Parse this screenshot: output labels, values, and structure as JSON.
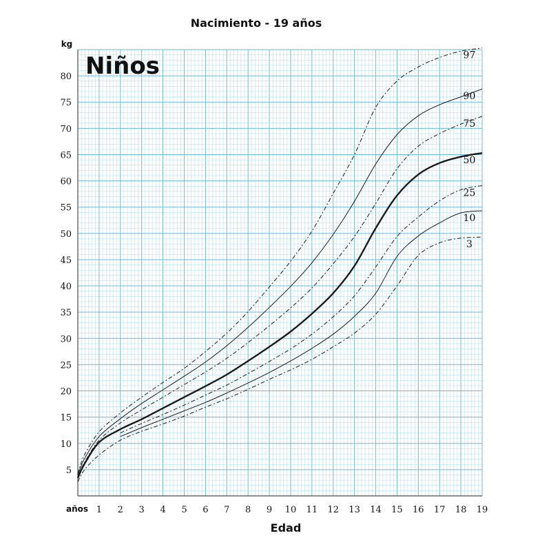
{
  "chart_data": {
    "type": "line",
    "title": "Nacimiento - 19 años",
    "subtitle": "Niños",
    "xlabel": "Edad",
    "x_unit": "años",
    "ylabel": "kg",
    "xlim": [
      0,
      19
    ],
    "ylim": [
      0,
      85
    ],
    "x_ticks": [
      "1",
      "2",
      "3",
      "4",
      "5",
      "6",
      "7",
      "8",
      "9",
      "10",
      "11",
      "12",
      "13",
      "14",
      "15",
      "16",
      "17",
      "18",
      "19"
    ],
    "y_ticks": [
      "5",
      "10",
      "15",
      "20",
      "25",
      "30",
      "35",
      "40",
      "45",
      "50",
      "55",
      "60",
      "65",
      "70",
      "75",
      "80"
    ],
    "grid": true,
    "series": [
      {
        "name": "97",
        "style": "dashed",
        "x": [
          0,
          0.3,
          1,
          2,
          3,
          4,
          5,
          6,
          7,
          8,
          9,
          10,
          11,
          12,
          13,
          14,
          15,
          16,
          17,
          18,
          19
        ],
        "y": [
          4.2,
          7.7,
          12.2,
          15.8,
          18.8,
          21.6,
          24.3,
          27.5,
          31.0,
          35.1,
          39.8,
          44.7,
          50.4,
          57.6,
          65.0,
          74.0,
          79.0,
          81.7,
          83.5,
          84.7,
          85.3
        ]
      },
      {
        "name": "90",
        "style": "solid",
        "x": [
          0,
          0.3,
          1,
          2,
          3,
          4,
          5,
          6,
          7,
          8,
          9,
          10,
          11,
          12,
          13,
          14,
          15,
          16,
          17,
          18,
          19
        ],
        "y": [
          3.9,
          7.0,
          11.3,
          14.7,
          17.6,
          20.2,
          22.8,
          25.5,
          28.6,
          32.1,
          35.9,
          39.9,
          44.4,
          49.8,
          56.1,
          63.2,
          68.8,
          72.4,
          74.5,
          76.0,
          77.5
        ]
      },
      {
        "name": "75",
        "style": "dashed",
        "x": [
          0,
          0.3,
          1,
          2,
          3,
          4,
          5,
          6,
          7,
          8,
          9,
          10,
          11,
          12,
          13,
          14,
          15,
          16,
          17,
          18,
          19
        ],
        "y": [
          3.6,
          6.3,
          10.6,
          13.9,
          16.4,
          18.8,
          21.2,
          23.6,
          26.2,
          29.2,
          32.4,
          35.8,
          39.6,
          44.2,
          49.4,
          55.7,
          62.3,
          66.6,
          69.0,
          70.8,
          72.3
        ]
      },
      {
        "name": "50",
        "style": "bold",
        "x": [
          0,
          0.3,
          1,
          2,
          3,
          4,
          5,
          6,
          7,
          8,
          9,
          10,
          11,
          12,
          13,
          14,
          15,
          16,
          17,
          18,
          19
        ],
        "y": [
          3.4,
          6.0,
          10.2,
          12.7,
          14.6,
          16.7,
          18.8,
          20.9,
          23.1,
          25.7,
          28.4,
          31.3,
          34.7,
          38.6,
          43.8,
          51.0,
          57.2,
          61.2,
          63.4,
          64.6,
          65.3
        ]
      },
      {
        "name": "25",
        "style": "dashed",
        "x": [
          2,
          3,
          4,
          5,
          6,
          7,
          8,
          9,
          10,
          11,
          12,
          13,
          14,
          15,
          16,
          17,
          18,
          19
        ],
        "y": [
          12.0,
          13.8,
          15.5,
          17.3,
          19.2,
          21.1,
          23.3,
          25.6,
          28.0,
          30.8,
          34.1,
          38.1,
          43.6,
          49.4,
          53.1,
          56.2,
          58.3,
          59.1
        ]
      },
      {
        "name": "10",
        "style": "solid",
        "x": [
          2,
          3,
          4,
          5,
          6,
          7,
          8,
          9,
          10,
          11,
          12,
          13,
          14,
          15,
          16,
          17,
          18,
          19
        ],
        "y": [
          11.3,
          13.0,
          14.6,
          16.2,
          17.8,
          19.6,
          21.5,
          23.5,
          25.7,
          28.1,
          30.8,
          34.2,
          38.6,
          45.6,
          49.5,
          52.0,
          53.9,
          54.3
        ]
      },
      {
        "name": "3",
        "style": "dashed",
        "x": [
          0,
          0.3,
          1,
          2,
          3,
          4,
          5,
          6,
          7,
          8,
          9,
          10,
          11,
          12,
          13,
          14,
          15,
          16,
          17,
          18,
          19
        ],
        "y": [
          2.7,
          4.9,
          7.8,
          10.6,
          12.3,
          13.7,
          15.2,
          16.9,
          18.5,
          20.3,
          22.2,
          24.0,
          26.0,
          28.4,
          31.0,
          34.6,
          40.0,
          45.8,
          48.2,
          49.1,
          49.3
        ]
      }
    ]
  }
}
